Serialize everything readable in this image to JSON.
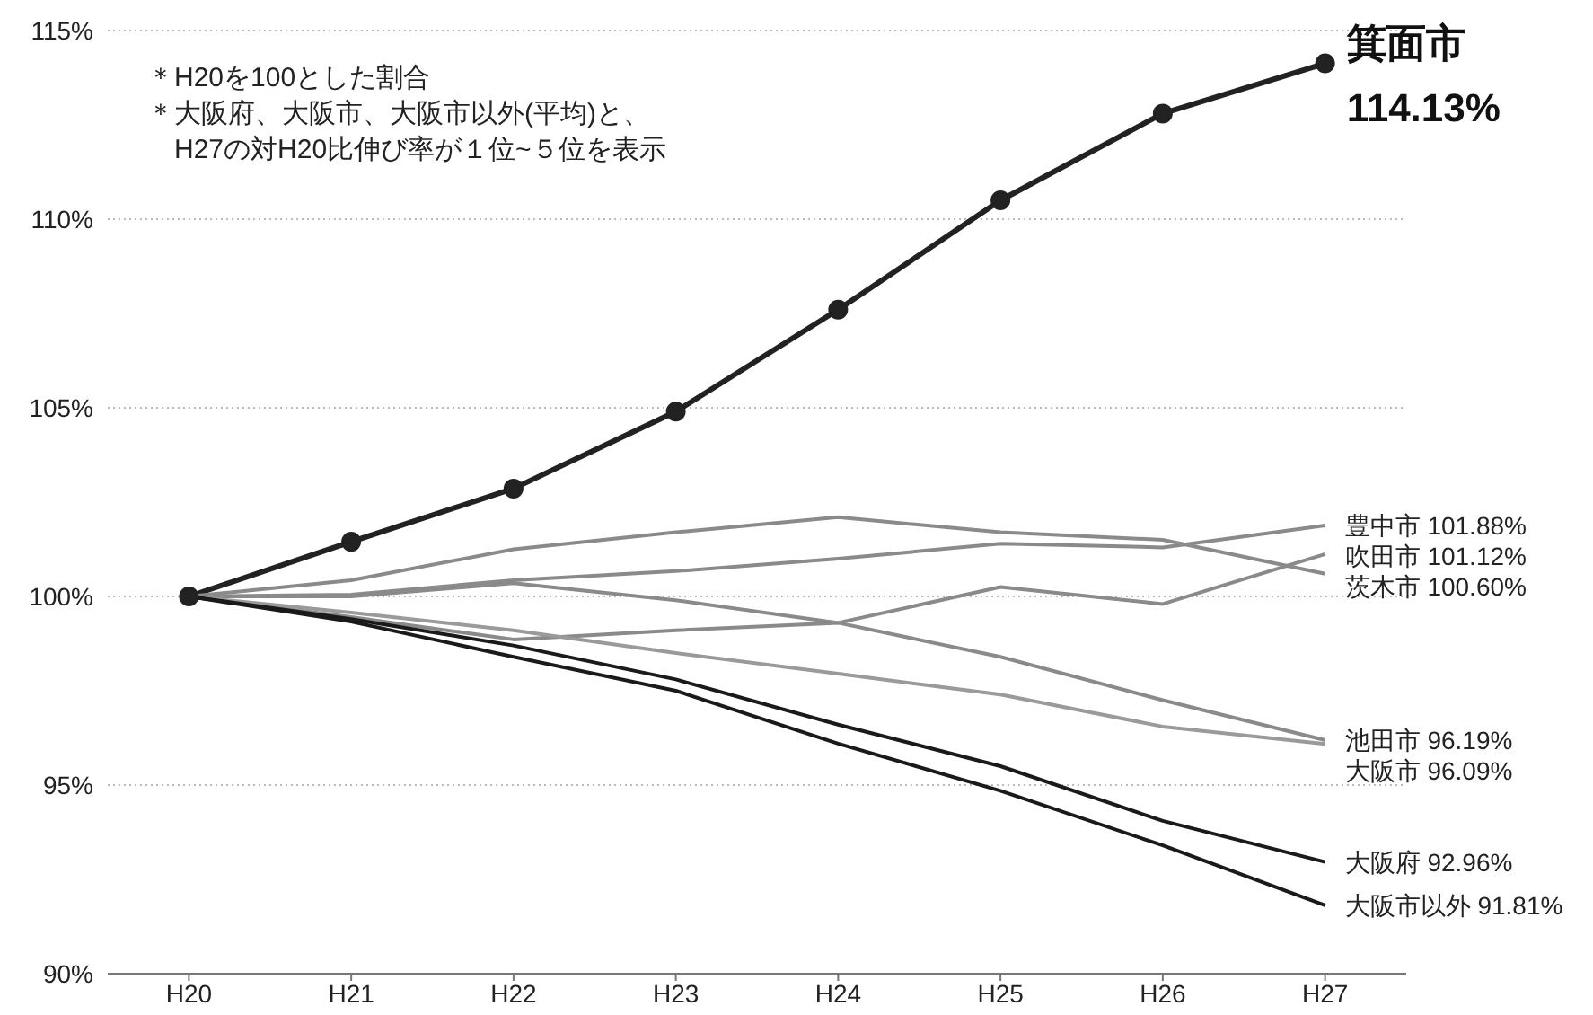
{
  "chart_data": {
    "type": "line",
    "categories": [
      "H20",
      "H21",
      "H22",
      "H23",
      "H24",
      "H25",
      "H26",
      "H27"
    ],
    "ylim": [
      90,
      115
    ],
    "yticks": [
      {
        "value": 90,
        "label": "90%"
      },
      {
        "value": 95,
        "label": "95%"
      },
      {
        "value": 100,
        "label": "100%"
      },
      {
        "value": 105,
        "label": "105%"
      },
      {
        "value": 110,
        "label": "110%"
      },
      {
        "value": 115,
        "label": "115%"
      }
    ],
    "grid": "y",
    "legend": false,
    "marker": "none",
    "line_style": "solid",
    "annotations": [
      "＊H20を100とした割合",
      "＊大阪府、大阪市、大阪市以外(平均)と、H27の対H20比伸び率が１位~５位を表示"
    ],
    "series": [
      {
        "name": "箕面市",
        "color": "#222222",
        "marker": "circle",
        "values": [
          100,
          101.45,
          102.86,
          104.9,
          107.6,
          110.5,
          112.8,
          114.13
        ],
        "value_labels": [
          null,
          null,
          null,
          null,
          null,
          null,
          null,
          "114.13%"
        ]
      },
      {
        "name": "豊中市",
        "color": "#8a8a8a",
        "values": [
          100,
          100.05,
          100.43,
          100.67,
          101.0,
          101.4,
          101.3,
          101.88
        ],
        "value_labels": [
          null,
          null,
          null,
          null,
          null,
          null,
          null,
          "101.88%"
        ]
      },
      {
        "name": "吹田市",
        "color": "#8a8a8a",
        "values": [
          100,
          99.45,
          98.86,
          99.1,
          99.3,
          100.25,
          99.8,
          101.12
        ],
        "value_labels": [
          null,
          null,
          null,
          null,
          null,
          null,
          null,
          "101.12%"
        ]
      },
      {
        "name": "茨木市",
        "color": "#8a8a8a",
        "values": [
          100,
          100.43,
          101.25,
          101.7,
          102.1,
          101.7,
          101.5,
          100.6
        ],
        "value_labels": [
          null,
          null,
          null,
          null,
          null,
          null,
          null,
          "100.60%"
        ]
      },
      {
        "name": "池田市",
        "color": "#8a8a8a",
        "values": [
          100,
          100.0,
          100.35,
          99.9,
          99.3,
          98.4,
          97.25,
          96.19
        ],
        "value_labels": [
          null,
          null,
          null,
          null,
          null,
          null,
          null,
          "96.19%"
        ]
      },
      {
        "name": "大阪市",
        "color": "#9a9a9a",
        "values": [
          100,
          99.57,
          99.1,
          98.5,
          97.95,
          97.4,
          96.55,
          96.09
        ],
        "value_labels": [
          null,
          null,
          null,
          null,
          null,
          null,
          null,
          "96.09%"
        ]
      },
      {
        "name": "大阪府",
        "color": "#1a1a1a",
        "values": [
          100,
          99.4,
          98.7,
          97.8,
          96.6,
          95.5,
          94.05,
          92.96
        ],
        "value_labels": [
          null,
          null,
          null,
          null,
          null,
          null,
          null,
          "92.96%"
        ]
      },
      {
        "name": "大阪市以外",
        "color": "#1a1a1a",
        "values": [
          100,
          99.33,
          98.4,
          97.5,
          96.1,
          94.85,
          93.4,
          91.81
        ],
        "value_labels": [
          null,
          null,
          null,
          null,
          null,
          null,
          null,
          "91.81%"
        ]
      }
    ]
  }
}
